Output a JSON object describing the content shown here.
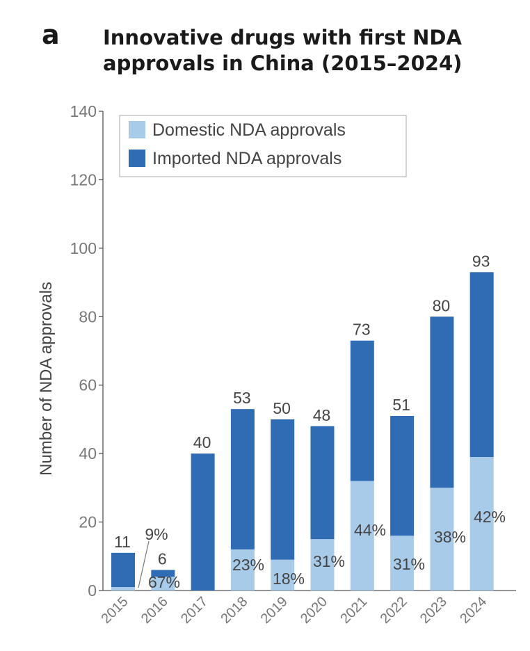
{
  "panel_label": "a",
  "title_lines": [
    "Innovative drugs with first NDA",
    "approvals in China (2015–2024)"
  ],
  "colors": {
    "domestic": "#a9cbea",
    "imported": "#2f6cb3",
    "axis": "#555555",
    "tick_text": "#777777",
    "label_text": "#444444"
  },
  "chart_data": {
    "type": "bar",
    "stacked": true,
    "title": "Innovative drugs with first NDA approvals in China (2015–2024)",
    "xlabel": "",
    "ylabel": "Number of NDA approvals",
    "ylim": [
      0,
      140
    ],
    "yticks": [
      0,
      20,
      40,
      60,
      80,
      100,
      120,
      140
    ],
    "categories": [
      "2015",
      "2016",
      "2017",
      "2018",
      "2019",
      "2020",
      "2021",
      "2022",
      "2023",
      "2024"
    ],
    "series": [
      {
        "name": "Domestic NDA approvals",
        "color": "#a9cbea",
        "values": [
          1,
          4,
          0,
          12,
          9,
          15,
          32,
          16,
          30,
          39
        ]
      },
      {
        "name": "Imported NDA approvals",
        "color": "#2f6cb3",
        "values": [
          10,
          2,
          40,
          41,
          41,
          33,
          41,
          35,
          50,
          54
        ]
      }
    ],
    "totals": [
      11,
      6,
      40,
      53,
      50,
      48,
      73,
      51,
      80,
      93
    ],
    "domestic_share_labels": [
      "9%",
      "67%",
      "",
      "23%",
      "18%",
      "31%",
      "44%",
      "31%",
      "38%",
      "42%"
    ],
    "legend_position": "top-left",
    "grid": false
  }
}
